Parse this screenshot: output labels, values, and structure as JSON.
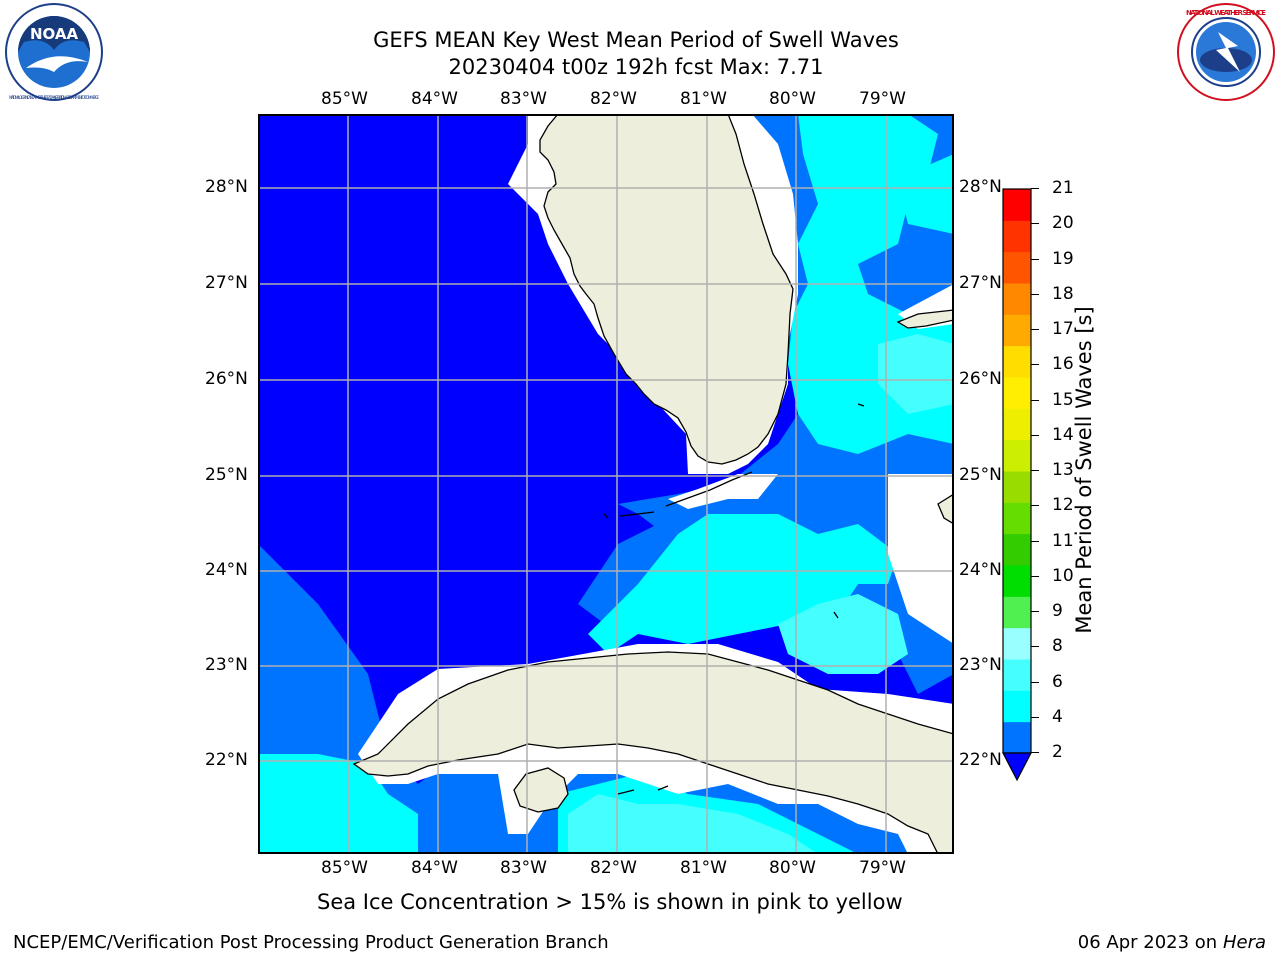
{
  "header": {
    "title_line1": "GEFS MEAN Key West Mean Period of Swell Waves",
    "title_line2": "20230404 t00z 192h fcst   Max: 7.71"
  },
  "logos": {
    "left_icon": "noaa-logo-icon",
    "left_text": "NOAA",
    "left_ring_text": "NATIONAL OCEANIC AND ATMOSPHERIC ADMINISTRATION · U.S. DEPARTMENT OF COMMERCE",
    "right_icon": "nws-logo-icon",
    "right_ring_text": "NATIONAL WEATHER SERVICE"
  },
  "map": {
    "lon_labels": [
      "85°W",
      "84°W",
      "83°W",
      "82°W",
      "81°W",
      "80°W",
      "79°W"
    ],
    "lat_labels": [
      "28°N",
      "27°N",
      "26°N",
      "25°N",
      "24°N",
      "23°N",
      "22°N"
    ],
    "colors": {
      "land": "#eeeedd",
      "grid": "#b0b0b0",
      "c_lt2": "#0000ff",
      "c_2_4": "#0073ff",
      "c_4_6": "#00ffff",
      "c_6_8": "#45ffff",
      "mask": "#ffffff"
    }
  },
  "colorbar": {
    "label": "Mean Period of Swell Waves [s]",
    "ticks": [
      "2",
      "4",
      "6",
      "8",
      "9",
      "10",
      "11",
      "12",
      "13",
      "14",
      "15",
      "16",
      "17",
      "18",
      "19",
      "20",
      "21"
    ],
    "colors": [
      "#0073ff",
      "#00ffff",
      "#45ffff",
      "#99ffff",
      "#50f050",
      "#00dd00",
      "#33cc00",
      "#66dd00",
      "#99dd00",
      "#ccee00",
      "#eeee00",
      "#ffee00",
      "#ffdd00",
      "#ffaa00",
      "#ff8800",
      "#ff5500",
      "#ff3300",
      "#ff0000"
    ],
    "under_color": "#0000ff"
  },
  "footer": {
    "note": "Sea Ice Concentration > 15% is shown in pink to yellow",
    "left": "NCEP/EMC/Verification Post Processing Product Generation Branch",
    "right_prefix": "06 Apr 2023 on ",
    "right_machine": "Hera"
  }
}
